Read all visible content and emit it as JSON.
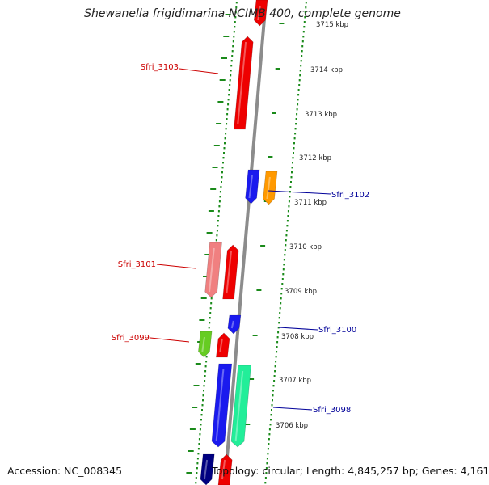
{
  "title": "Shewanella frigidimarina NCIMB 400, complete genome",
  "footer": {
    "accession": "Accession: NC_008345",
    "summary": "Topology: circular; Length: 4,845,257 bp; Genes: 4,161"
  },
  "coordinate_ticks": [
    {
      "label": "3715 kbp"
    },
    {
      "label": "3714 kbp"
    },
    {
      "label": "3713 kbp"
    },
    {
      "label": "3712 kbp"
    },
    {
      "label": "3711 kbp"
    },
    {
      "label": "3710 kbp"
    },
    {
      "label": "3709 kbp"
    },
    {
      "label": "3708 kbp"
    },
    {
      "label": "3707 kbp"
    },
    {
      "label": "3706 kbp"
    }
  ],
  "gene_labels": [
    {
      "text": "Sfri_3103",
      "color": "#cc0000"
    },
    {
      "text": "Sfri_3102",
      "color": "#000099"
    },
    {
      "text": "Sfri_3101",
      "color": "#cc0000"
    },
    {
      "text": "Sfri_3100",
      "color": "#000099"
    },
    {
      "text": "Sfri_3099",
      "color": "#cc0000"
    },
    {
      "text": "Sfri_3098",
      "color": "#000099"
    }
  ],
  "colors": {
    "backbone": "#8c8c8c",
    "gc_skew_dots": "#1a8a1a",
    "red_gene": "#ee0000",
    "pink_gene": "#f08080",
    "blue_gene": "#1a1aee",
    "orange_gene": "#ff9900",
    "green_gene": "#66cc22",
    "lime_gene": "#bbee33",
    "teal_gene": "#22ee99",
    "navy_gene": "#000080"
  }
}
